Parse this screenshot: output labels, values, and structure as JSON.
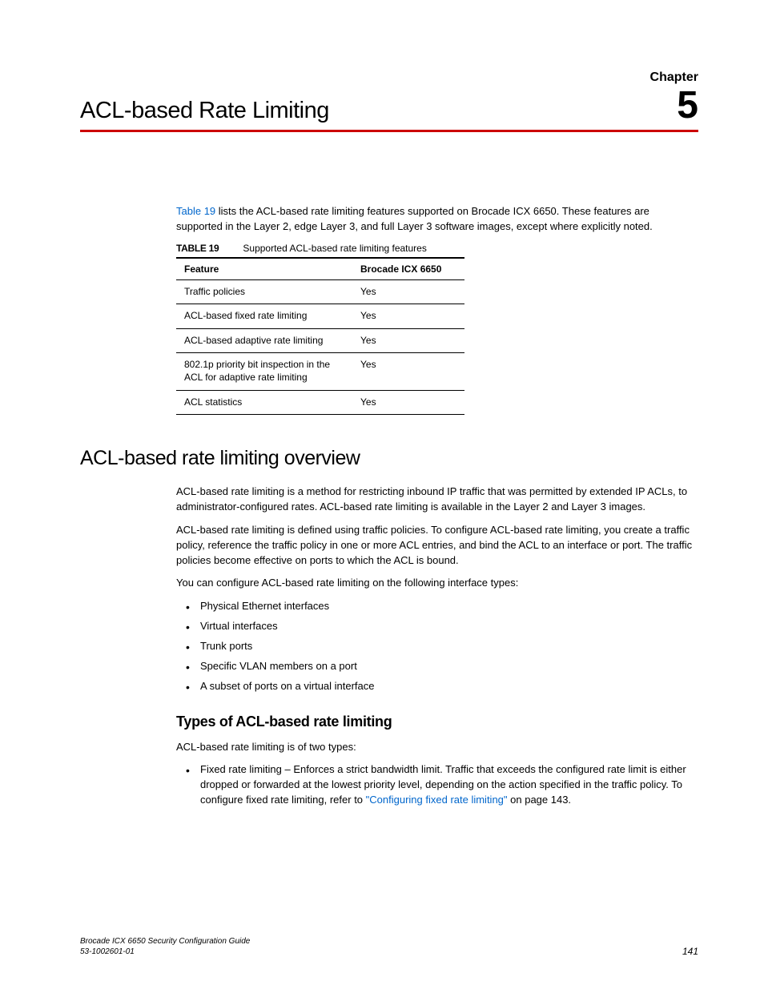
{
  "chapter": {
    "label": "Chapter",
    "number": "5",
    "title": "ACL-based Rate Limiting"
  },
  "intro": {
    "link_text": "Table 19",
    "text_after": " lists the ACL-based rate limiting features supported on Brocade ICX 6650. These features are supported in the Layer 2, edge Layer 3, and full Layer 3 software images, except where explicitly noted."
  },
  "table": {
    "label": "TABLE 19",
    "caption": "Supported ACL-based rate limiting features",
    "columns": [
      "Feature",
      "Brocade ICX 6650"
    ],
    "rows": [
      [
        "Traffic policies",
        "Yes"
      ],
      [
        "ACL-based fixed rate limiting",
        "Yes"
      ],
      [
        "ACL-based adaptive rate limiting",
        "Yes"
      ],
      [
        "802.1p priority bit inspection in the ACL for adaptive rate limiting",
        "Yes"
      ],
      [
        "ACL statistics",
        "Yes"
      ]
    ]
  },
  "overview": {
    "heading": "ACL-based rate limiting overview",
    "p1": "ACL-based rate limiting is a method for restricting inbound IP traffic that was permitted by extended IP ACLs, to administrator-configured rates. ACL-based rate limiting is available in the Layer 2 and Layer 3 images.",
    "p2": "ACL-based rate limiting is defined using traffic policies. To configure ACL-based rate limiting, you create a traffic policy, reference the traffic policy in one or more ACL entries, and bind the ACL to an interface or port. The traffic policies become effective on ports to which the ACL is bound.",
    "p3": "You can configure ACL-based rate limiting on the following interface types:",
    "bullets": [
      "Physical Ethernet interfaces",
      "Virtual interfaces",
      "Trunk ports",
      "Specific VLAN members on a port",
      "A subset of ports on a virtual interface"
    ]
  },
  "types": {
    "heading": "Types of ACL-based rate limiting",
    "intro": "ACL-based rate limiting is of two types:",
    "item_prefix": "Fixed rate limiting – Enforces a strict bandwidth limit. Traffic that exceeds the configured rate limit is either dropped or forwarded at the lowest priority level, depending on the action specified in the traffic policy. To configure fixed rate limiting, refer to ",
    "item_link": "\"Configuring fixed rate limiting\"",
    "item_suffix": " on page 143."
  },
  "footer": {
    "doc_title": "Brocade ICX 6650 Security Configuration Guide",
    "doc_id": "53-1002601-01",
    "page": "141"
  },
  "colors": {
    "rule": "#cc0000",
    "link": "#0066cc"
  }
}
